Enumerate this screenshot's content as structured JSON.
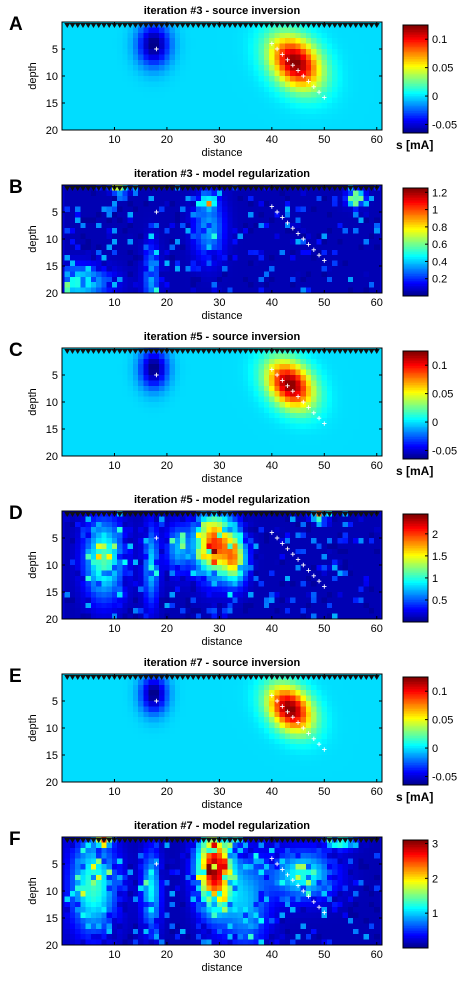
{
  "figure": {
    "colormap": "jet",
    "background": "#ffffff"
  },
  "chart_data": [
    {
      "letter": "A",
      "type": "heatmap",
      "field": "source",
      "title": "iteration #3 - source inversion",
      "xlabel": "distance",
      "ylabel": "depth",
      "xlim": [
        0,
        61
      ],
      "ylim": [
        20,
        0
      ],
      "xticks": [
        "10",
        "20",
        "30",
        "40",
        "50",
        "60"
      ],
      "xtick_values": [
        10,
        20,
        30,
        40,
        50,
        60
      ],
      "yticks": [
        "5",
        "10",
        "15",
        "20"
      ],
      "ytick_values": [
        5,
        10,
        15,
        20
      ],
      "colorbar": {
        "min": -0.065,
        "max": 0.125,
        "ticks": [
          "0.1",
          "0.05",
          "0",
          "-0.05"
        ],
        "tick_values": [
          0.1,
          0.05,
          0,
          -0.05
        ],
        "unit": "s [mA]"
      },
      "features": [
        {
          "kind": "negative-source",
          "x": 17.5,
          "y": 4.2,
          "sx": 2.2,
          "sy": 2.8,
          "amplitude": -0.065
        },
        {
          "kind": "positive-source",
          "x": 44.5,
          "y": 7.5,
          "sx": 3.0,
          "sy": 3.3,
          "amplitude": 0.125
        }
      ],
      "true_source_markers": {
        "point": [
          18,
          5
        ],
        "line": [
          [
            40,
            4
          ],
          [
            50,
            14
          ]
        ]
      }
    },
    {
      "letter": "B",
      "type": "heatmap",
      "field": "regularization",
      "title": "iteration #3 - model regularization",
      "xlabel": "distance",
      "ylabel": "depth",
      "xlim": [
        0,
        61
      ],
      "ylim": [
        20,
        0
      ],
      "xticks": [
        "10",
        "20",
        "30",
        "40",
        "50",
        "60"
      ],
      "xtick_values": [
        10,
        20,
        30,
        40,
        50,
        60
      ],
      "yticks": [
        "5",
        "10",
        "15",
        "20"
      ],
      "ytick_values": [
        5,
        10,
        15,
        20
      ],
      "colorbar": {
        "min": 0.0,
        "max": 1.25,
        "ticks": [
          "1.2",
          "1",
          "0.8",
          "0.6",
          "0.4",
          "0.2"
        ],
        "tick_values": [
          1.2,
          1.0,
          0.8,
          0.6,
          0.4,
          0.2
        ],
        "unit": ""
      },
      "features": [
        {
          "kind": "blob",
          "x": 3,
          "y": 18,
          "sx": 4,
          "sy": 2,
          "amplitude": 0.45
        },
        {
          "kind": "blob",
          "x": 28,
          "y": 8,
          "sx": 2,
          "sy": 4,
          "amplitude": 0.3
        },
        {
          "kind": "blob",
          "x": 17,
          "y": 17,
          "sx": 1,
          "sy": 4,
          "amplitude": 0.3
        },
        {
          "kind": "hotspot",
          "x": 11,
          "y": 0.5,
          "sx": 1,
          "sy": 0.6,
          "amplitude": 1.1
        },
        {
          "kind": "hotspot",
          "x": 56,
          "y": 2.5,
          "sx": 1,
          "sy": 1,
          "amplitude": 0.9
        },
        {
          "kind": "hotspot",
          "x": 28,
          "y": 3,
          "sx": 0.8,
          "sy": 0.8,
          "amplitude": 0.7
        }
      ],
      "true_source_markers": {
        "point": [
          18,
          5
        ],
        "line": [
          [
            40,
            4
          ],
          [
            50,
            14
          ]
        ]
      }
    },
    {
      "letter": "C",
      "type": "heatmap",
      "field": "source",
      "title": "iteration #5 - source inversion",
      "xlabel": "distance",
      "ylabel": "depth",
      "xlim": [
        0,
        61
      ],
      "ylim": [
        20,
        0
      ],
      "xticks": [
        "10",
        "20",
        "30",
        "40",
        "50",
        "60"
      ],
      "xtick_values": [
        10,
        20,
        30,
        40,
        50,
        60
      ],
      "yticks": [
        "5",
        "10",
        "15",
        "20"
      ],
      "ytick_values": [
        5,
        10,
        15,
        20
      ],
      "colorbar": {
        "min": -0.065,
        "max": 0.125,
        "ticks": [
          "0.1",
          "0.05",
          "0",
          "-0.05"
        ],
        "tick_values": [
          0.1,
          0.05,
          0,
          -0.05
        ],
        "unit": "s [mA]"
      },
      "features": [
        {
          "kind": "negative-source",
          "x": 17.5,
          "y": 3.8,
          "sx": 1.9,
          "sy": 2.6,
          "amplitude": -0.065
        },
        {
          "kind": "positive-source",
          "x": 43.5,
          "y": 6.8,
          "sx": 2.7,
          "sy": 3.0,
          "amplitude": 0.125
        }
      ],
      "true_source_markers": {
        "point": [
          18,
          5
        ],
        "line": [
          [
            40,
            4
          ],
          [
            50,
            14
          ]
        ]
      }
    },
    {
      "letter": "D",
      "type": "heatmap",
      "field": "regularization",
      "title": "iteration #5 - model regularization",
      "xlabel": "distance",
      "ylabel": "depth",
      "xlim": [
        0,
        61
      ],
      "ylim": [
        20,
        0
      ],
      "xticks": [
        "10",
        "20",
        "30",
        "40",
        "50",
        "60"
      ],
      "xtick_values": [
        10,
        20,
        30,
        40,
        50,
        60
      ],
      "yticks": [
        "5",
        "10",
        "15",
        "20"
      ],
      "ytick_values": [
        5,
        10,
        15,
        20
      ],
      "colorbar": {
        "min": 0.0,
        "max": 2.45,
        "ticks": [
          "2",
          "1.5",
          "1",
          "0.5"
        ],
        "tick_values": [
          2,
          1.5,
          1,
          0.5
        ],
        "unit": ""
      },
      "features": [
        {
          "kind": "blob",
          "x": 8,
          "y": 9,
          "sx": 2.5,
          "sy": 5,
          "amplitude": 1.0
        },
        {
          "kind": "blob",
          "x": 29,
          "y": 6,
          "sx": 2.5,
          "sy": 4,
          "amplitude": 1.9
        },
        {
          "kind": "blob",
          "x": 17,
          "y": 10,
          "sx": 1,
          "sy": 5,
          "amplitude": 0.7
        },
        {
          "kind": "blob",
          "x": 33,
          "y": 9,
          "sx": 1.5,
          "sy": 3,
          "amplitude": 1.3
        },
        {
          "kind": "blob",
          "x": 22,
          "y": 7,
          "sx": 1.5,
          "sy": 3,
          "amplitude": 0.6
        },
        {
          "kind": "hotspot",
          "x": 49,
          "y": 0.7,
          "sx": 1,
          "sy": 0.7,
          "amplitude": 1.8
        }
      ],
      "true_source_markers": {
        "point": [
          18,
          5
        ],
        "line": [
          [
            40,
            4
          ],
          [
            50,
            14
          ]
        ]
      }
    },
    {
      "letter": "E",
      "type": "heatmap",
      "field": "source",
      "title": "iteration #7 - source inversion",
      "xlabel": "distance",
      "ylabel": "depth",
      "xlim": [
        0,
        61
      ],
      "ylim": [
        20,
        0
      ],
      "xticks": [
        "10",
        "20",
        "30",
        "40",
        "50",
        "60"
      ],
      "xtick_values": [
        10,
        20,
        30,
        40,
        50,
        60
      ],
      "yticks": [
        "5",
        "10",
        "15",
        "20"
      ],
      "ytick_values": [
        5,
        10,
        15,
        20
      ],
      "colorbar": {
        "min": -0.065,
        "max": 0.125,
        "ticks": [
          "0.1",
          "0.05",
          "0",
          "-0.05"
        ],
        "tick_values": [
          0.1,
          0.05,
          0,
          -0.05
        ],
        "unit": "s [mA]"
      },
      "features": [
        {
          "kind": "negative-source",
          "x": 17.5,
          "y": 3.7,
          "sx": 1.8,
          "sy": 2.5,
          "amplitude": -0.065
        },
        {
          "kind": "positive-source",
          "x": 43.5,
          "y": 6.5,
          "sx": 2.6,
          "sy": 2.8,
          "amplitude": 0.125
        }
      ],
      "true_source_markers": {
        "point": [
          18,
          5
        ],
        "line": [
          [
            40,
            4
          ],
          [
            50,
            14
          ]
        ]
      }
    },
    {
      "letter": "F",
      "type": "heatmap",
      "field": "regularization",
      "title": "iteration #7 - model regularization",
      "xlabel": "distance",
      "ylabel": "depth",
      "xlim": [
        0,
        61
      ],
      "ylim": [
        20,
        0
      ],
      "xticks": [
        "10",
        "20",
        "30",
        "40",
        "50",
        "60"
      ],
      "xtick_values": [
        10,
        20,
        30,
        40,
        50,
        60
      ],
      "yticks": [
        "5",
        "10",
        "15",
        "20"
      ],
      "ytick_values": [
        5,
        10,
        15,
        20
      ],
      "colorbar": {
        "min": 0.0,
        "max": 3.1,
        "ticks": [
          "3",
          "2",
          "1"
        ],
        "tick_values": [
          3,
          2,
          1
        ],
        "unit": ""
      },
      "features": [
        {
          "kind": "blob",
          "x": 6,
          "y": 9,
          "sx": 3,
          "sy": 6,
          "amplitude": 1.2
        },
        {
          "kind": "blob",
          "x": 29,
          "y": 6,
          "sx": 2.2,
          "sy": 5,
          "amplitude": 2.8
        },
        {
          "kind": "blob",
          "x": 17,
          "y": 10,
          "sx": 1.2,
          "sy": 5,
          "amplitude": 1.0
        },
        {
          "kind": "blob",
          "x": 46,
          "y": 7,
          "sx": 4,
          "sy": 3,
          "amplitude": 1.1
        },
        {
          "kind": "blob",
          "x": 35,
          "y": 12,
          "sx": 3,
          "sy": 6,
          "amplitude": 0.8
        },
        {
          "kind": "hotspot",
          "x": 53,
          "y": 1,
          "sx": 2,
          "sy": 0.8,
          "amplitude": 1.3
        },
        {
          "kind": "hotspot",
          "x": 8,
          "y": 0.6,
          "sx": 1,
          "sy": 0.6,
          "amplitude": 2.0
        }
      ],
      "true_source_markers": {
        "point": [
          18,
          5
        ],
        "line": [
          [
            40,
            4
          ],
          [
            50,
            14
          ]
        ]
      }
    }
  ]
}
